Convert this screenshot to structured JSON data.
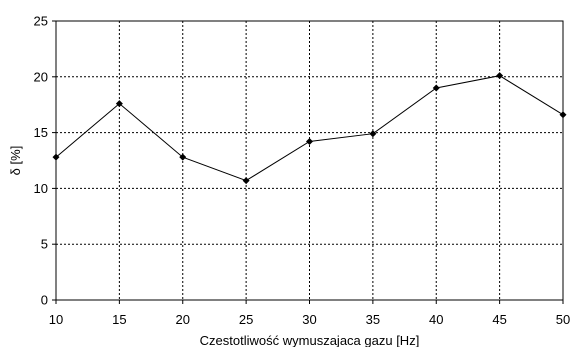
{
  "chart_data": {
    "type": "line",
    "xlabel": "Czestotliwość wymuszajaca gazu [Hz]",
    "ylabel": "δ [%]",
    "xlim": [
      10,
      50
    ],
    "ylim": [
      0,
      25
    ],
    "x_ticks": [
      10,
      15,
      20,
      25,
      30,
      35,
      40,
      45,
      50
    ],
    "y_ticks": [
      0,
      5,
      10,
      15,
      20,
      25
    ],
    "grid": true,
    "legend": "none",
    "series": [
      {
        "x": [
          10,
          15,
          20,
          25,
          30,
          35,
          40,
          45,
          50
        ],
        "y": [
          12.8,
          17.6,
          12.8,
          10.7,
          14.2,
          14.9,
          19.0,
          20.1,
          16.6
        ],
        "color": "#000000",
        "marker": "diamond"
      }
    ]
  }
}
